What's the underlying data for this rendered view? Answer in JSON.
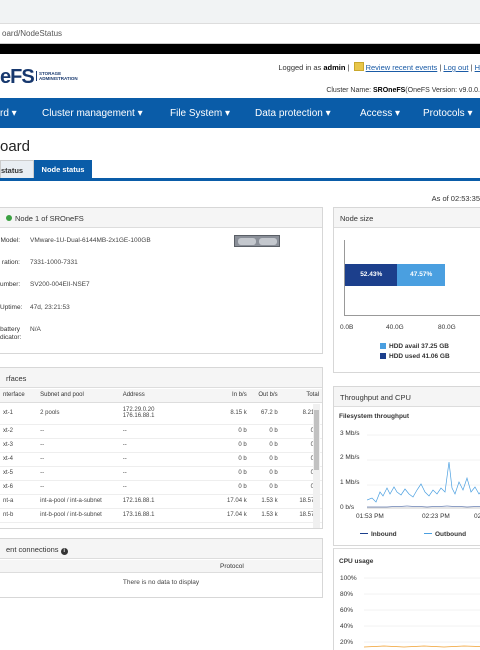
{
  "browser": {
    "url": "oard/NodeStatus"
  },
  "header": {
    "logo_text": "eFS",
    "logo_sub_1": "STORAGE",
    "logo_sub_2": "ADMINISTRATION",
    "logged_in_prefix": "Logged in as",
    "user": "admin",
    "review_link": "Review recent events",
    "logout_link": "Log out",
    "cluster_prefix": "Cluster Name:",
    "cluster_name": "SROneFS",
    "cluster_suffix": "(OneFS Version: v9.0.0."
  },
  "nav": {
    "items": [
      "rd ▾",
      "Cluster management ▾",
      "File System ▾",
      "Data protection ▾",
      "Access ▾",
      "Protocols ▾"
    ]
  },
  "page": {
    "title": "oard",
    "tabs": [
      {
        "label": "status",
        "active": false
      },
      {
        "label": "Node status",
        "active": true
      }
    ],
    "as_of": "As of 02:53:35"
  },
  "node_panel": {
    "title": "Node 1 of SROneFS",
    "rows": [
      {
        "key": "Model:",
        "value": "VMware-1U-Dual-6144MB-2x1GE-100GB"
      },
      {
        "key": "ration:",
        "value": "7331-1000-7331"
      },
      {
        "key": "umber:",
        "value": "SV200-004EII-NSE7"
      },
      {
        "key": "Uptime:",
        "value": "47d, 23:21:53"
      },
      {
        "key": "battery",
        "key2": "dicator:",
        "value": "N/A"
      }
    ]
  },
  "interfaces_panel": {
    "title": "rfaces",
    "columns": [
      "nterface",
      "Subnet and pool",
      "Address",
      "In b/s",
      "Out b/s",
      "Total"
    ],
    "rows": [
      {
        "iface": "xt-1",
        "pool": "2 pools",
        "addr": "172.29.0.20",
        "addr2": "176.16.88.1",
        "in": "8.15 k",
        "out": "67.2 b",
        "total": "8.21 k",
        "link": true
      },
      {
        "iface": "xt-2",
        "pool": "--",
        "addr": "--",
        "in": "0 b",
        "out": "0 b",
        "total": "0 b"
      },
      {
        "iface": "xt-3",
        "pool": "--",
        "addr": "--",
        "in": "0 b",
        "out": "0 b",
        "total": "0 b"
      },
      {
        "iface": "xt-4",
        "pool": "--",
        "addr": "--",
        "in": "0 b",
        "out": "0 b",
        "total": "0 b"
      },
      {
        "iface": "xt-5",
        "pool": "--",
        "addr": "--",
        "in": "0 b",
        "out": "0 b",
        "total": "0 b"
      },
      {
        "iface": "xt-6",
        "pool": "--",
        "addr": "--",
        "in": "0 b",
        "out": "0 b",
        "total": "0 b"
      },
      {
        "iface": "nt-a",
        "pool": "int-a-pool / int-a-subnet",
        "addr": "172.16.88.1",
        "in": "17.04 k",
        "out": "1.53 k",
        "total": "18.57 k",
        "blue": true
      },
      {
        "iface": "nt-b",
        "pool": "int-b-pool / int-b-subnet",
        "addr": "173.16.88.1",
        "in": "17.04 k",
        "out": "1.53 k",
        "total": "18.57 k",
        "blue": true
      }
    ]
  },
  "connections_panel": {
    "title": "ent connections",
    "columns": [
      "",
      "Protocol"
    ],
    "empty": "There is no data to display"
  },
  "node_size_panel": {
    "title": "Node size",
    "avail_pct": "47.57%",
    "used_pct": "52.43%",
    "axis": [
      "0.0B",
      "40.0G",
      "80.0G"
    ],
    "legend_avail": "HDD avail 37.25 GB",
    "legend_used": "HDD used 41.06 GB",
    "colors": {
      "avail": "#4a9fe0",
      "used": "#1c3f8c"
    }
  },
  "throughput_panel": {
    "title": "Throughput and CPU",
    "sub_title": "Filesystem throughput",
    "y_ticks": [
      "3 Mb/s",
      "2 Mb/s",
      "1 Mb/s",
      "0 b/s"
    ],
    "x_ticks": [
      "01:53 PM",
      "02:23 PM",
      "02"
    ],
    "legend": [
      "Inbound",
      "Outbound"
    ],
    "colors": {
      "inbound": "#1c3f8c",
      "outbound": "#4a9fe0"
    }
  },
  "cpu_panel": {
    "title": "CPU usage",
    "y_ticks": [
      "100%",
      "80%",
      "60%",
      "40%",
      "20%"
    ]
  }
}
